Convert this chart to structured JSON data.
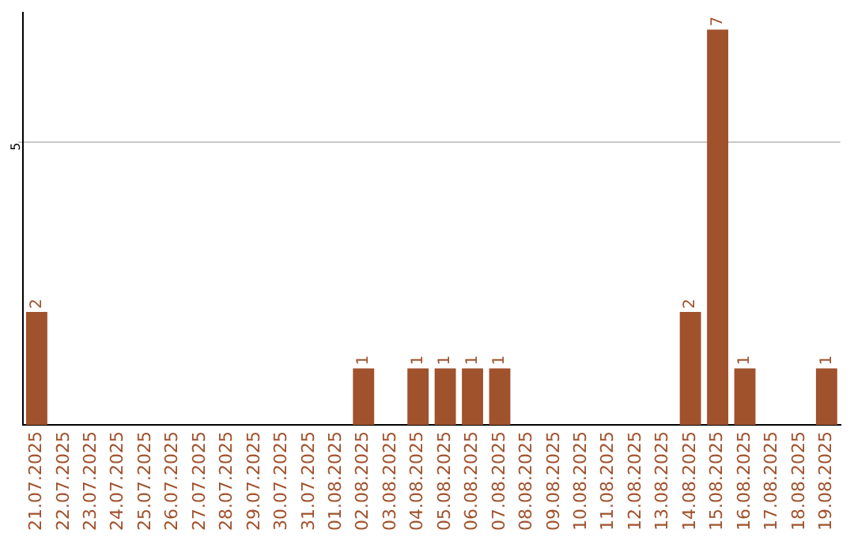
{
  "chart_data": {
    "type": "bar",
    "categories": [
      "21.07.2025",
      "22.07.2025",
      "23.07.2025",
      "24.07.2025",
      "25.07.2025",
      "26.07.2025",
      "27.07.2025",
      "28.07.2025",
      "29.07.2025",
      "30.07.2025",
      "31.07.2025",
      "01.08.2025",
      "02.08.2025",
      "03.08.2025",
      "04.08.2025",
      "05.08.2025",
      "06.08.2025",
      "07.08.2025",
      "08.08.2025",
      "09.08.2025",
      "10.08.2025",
      "11.08.2025",
      "12.08.2025",
      "13.08.2025",
      "14.08.2025",
      "15.08.2025",
      "16.08.2025",
      "17.08.2025",
      "18.08.2025",
      "19.08.2025"
    ],
    "values": [
      2,
      0,
      0,
      0,
      0,
      0,
      0,
      0,
      0,
      0,
      0,
      0,
      1,
      0,
      1,
      1,
      1,
      1,
      0,
      0,
      0,
      0,
      0,
      0,
      2,
      7,
      1,
      0,
      0,
      1
    ],
    "value_labels": [
      "2",
      null,
      null,
      null,
      null,
      null,
      null,
      null,
      null,
      null,
      null,
      null,
      "1",
      null,
      "1",
      "1",
      "1",
      "1",
      null,
      null,
      null,
      null,
      null,
      null,
      "2",
      "7",
      "1",
      null,
      null,
      "1"
    ],
    "color": "#a0522d",
    "ylim": [
      0,
      7.3
    ],
    "yticks": [
      5
    ],
    "grid": "y",
    "legend": false
  }
}
